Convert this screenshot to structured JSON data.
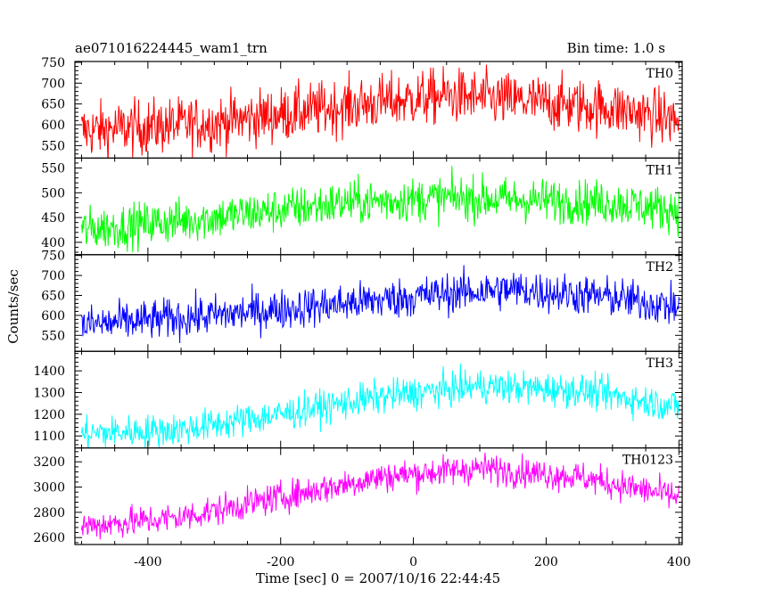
{
  "chart_data": {
    "type": "line",
    "title": "ae071016224445_wam1_trn",
    "bin_label": "Bin time: 1.0 s",
    "xlabel": "Time [sec] 0 = 2007/10/16 22:44:45",
    "ylabel": "Counts/sec",
    "xlim": [
      -510,
      405
    ],
    "x_ticks": [
      -400,
      -200,
      0,
      200,
      400
    ],
    "x_start": -500,
    "x_end": 400,
    "x_step": 1,
    "grid": false,
    "panels": [
      {
        "name": "TH0",
        "color": "#ff0000",
        "ylim": [
          520,
          752
        ],
        "y_ticks": [
          550,
          600,
          650,
          700,
          750
        ],
        "trend": [
          [
            -500,
            585
          ],
          [
            -300,
            605
          ],
          [
            -100,
            645
          ],
          [
            50,
            670
          ],
          [
            300,
            640
          ],
          [
            400,
            610
          ]
        ],
        "noise_sd": 33
      },
      {
        "name": "TH1",
        "color": "#00ff00",
        "ylim": [
          375,
          570
        ],
        "y_ticks": [
          400,
          450,
          500,
          550
        ],
        "trend": [
          [
            -500,
            425
          ],
          [
            -300,
            450
          ],
          [
            -100,
            480
          ],
          [
            50,
            490
          ],
          [
            300,
            480
          ],
          [
            400,
            465
          ]
        ],
        "noise_sd": 22
      },
      {
        "name": "TH2",
        "color": "#0000ff",
        "ylim": [
          510,
          752
        ],
        "y_ticks": [
          550,
          600,
          650,
          700,
          750
        ],
        "trend": [
          [
            -500,
            575
          ],
          [
            -300,
            600
          ],
          [
            -100,
            630
          ],
          [
            50,
            655
          ],
          [
            150,
            665
          ],
          [
            300,
            645
          ],
          [
            400,
            620
          ]
        ],
        "noise_sd": 25
      },
      {
        "name": "TH3",
        "color": "#00ffff",
        "ylim": [
          1045,
          1490
        ],
        "y_ticks": [
          1100,
          1200,
          1300,
          1400
        ],
        "trend": [
          [
            -500,
            1110
          ],
          [
            -350,
            1130
          ],
          [
            -200,
            1200
          ],
          [
            -50,
            1280
          ],
          [
            100,
            1330
          ],
          [
            250,
            1310
          ],
          [
            400,
            1235
          ]
        ],
        "noise_sd": 38
      },
      {
        "name": "TH0123",
        "color": "#ff00ff",
        "ylim": [
          2545,
          3310
        ],
        "y_ticks": [
          2600,
          2800,
          3000,
          3200
        ],
        "trend": [
          [
            -500,
            2690
          ],
          [
            -350,
            2760
          ],
          [
            -200,
            2920
          ],
          [
            -50,
            3080
          ],
          [
            100,
            3150
          ],
          [
            250,
            3080
          ],
          [
            400,
            2920
          ]
        ],
        "noise_sd": 60
      }
    ]
  }
}
